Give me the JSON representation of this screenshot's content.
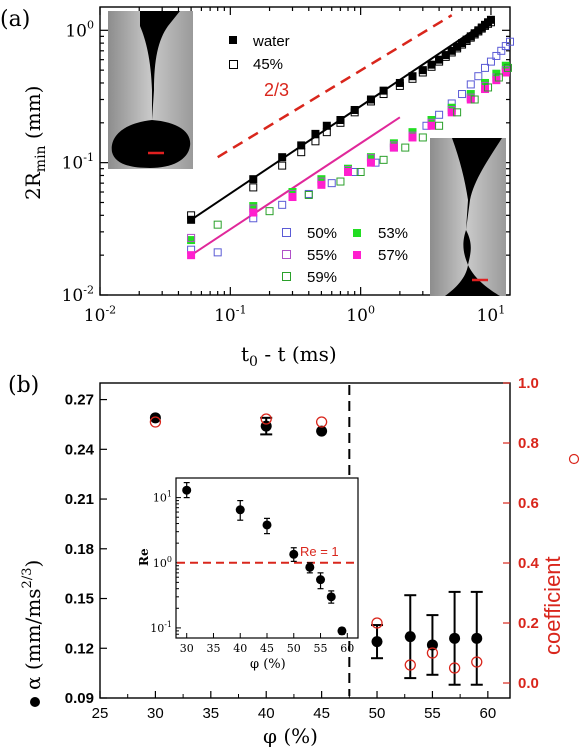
{
  "chart_data": [
    {
      "panel_label": "(a)",
      "type": "scatter",
      "scale": "log-log",
      "xlabel_main": "t",
      "xlabel_sub": "0",
      "xlabel_rest": " - t (ms)",
      "ylabel_main": "2R",
      "ylabel_sub": "min",
      "ylabel_rest": " (mm)",
      "xlim": [
        0.01,
        14
      ],
      "ylim": [
        0.01,
        1.5
      ],
      "x_ticks": [
        {
          "value": 0.01,
          "base": "10",
          "exp": "-2"
        },
        {
          "value": 0.1,
          "base": "10",
          "exp": "-1"
        },
        {
          "value": 1,
          "base": "10",
          "exp": "0"
        },
        {
          "value": 10,
          "base": "10",
          "exp": "1"
        }
      ],
      "y_ticks": [
        {
          "value": 0.01,
          "base": "10",
          "exp": "-2"
        },
        {
          "value": 0.1,
          "base": "10",
          "exp": "-1"
        },
        {
          "value": 1,
          "base": "10",
          "exp": "0"
        }
      ],
      "slope_label": "2/3",
      "slope_line": {
        "x": [
          0.08,
          5.0
        ],
        "y": [
          0.11,
          1.3
        ],
        "color": "#d9261c"
      },
      "fit_lines": [
        {
          "x": [
            0.05,
            10
          ],
          "y": [
            0.037,
            1.22
          ],
          "color": "#000000"
        },
        {
          "x": [
            0.05,
            2.0
          ],
          "y": [
            0.02,
            0.22
          ],
          "color": "#e0289a"
        }
      ],
      "series": [
        {
          "name": "water",
          "marker": "square-filled",
          "color": "#000000",
          "x": [
            0.05,
            0.15,
            0.25,
            0.35,
            0.45,
            0.55,
            0.7,
            0.9,
            1.2,
            1.5,
            2.0,
            2.5,
            3.0,
            3.5,
            4.0,
            4.5,
            5.0,
            5.5,
            6.0,
            6.5,
            7.0,
            7.5,
            8.0,
            8.5,
            9.0,
            9.5,
            10.0
          ],
          "y": [
            0.037,
            0.075,
            0.11,
            0.135,
            0.165,
            0.19,
            0.21,
            0.25,
            0.3,
            0.35,
            0.4,
            0.45,
            0.5,
            0.55,
            0.6,
            0.65,
            0.7,
            0.75,
            0.8,
            0.85,
            0.9,
            0.95,
            1.0,
            1.05,
            1.1,
            1.15,
            1.2
          ]
        },
        {
          "name": "45%",
          "marker": "square-open",
          "color": "#000000",
          "x": [
            0.05,
            0.15,
            0.25,
            0.35,
            0.45,
            0.55,
            0.7,
            0.9,
            1.2,
            1.5,
            2.0,
            2.5,
            3.0,
            3.5,
            4.0,
            4.5,
            5.0,
            5.5,
            6.0,
            6.5,
            7.0,
            7.5,
            8.0,
            8.5,
            9.0,
            9.5,
            10.0
          ],
          "y": [
            0.04,
            0.065,
            0.095,
            0.12,
            0.145,
            0.17,
            0.2,
            0.24,
            0.29,
            0.33,
            0.38,
            0.43,
            0.48,
            0.53,
            0.58,
            0.63,
            0.68,
            0.73,
            0.78,
            0.83,
            0.88,
            0.93,
            0.98,
            1.03,
            1.08,
            1.12,
            1.15
          ]
        },
        {
          "name": "50%",
          "marker": "square-open",
          "color": "#5b5bd6",
          "x": [
            0.05,
            0.08,
            0.15,
            0.25,
            0.4,
            0.6,
            0.9,
            1.3,
            1.8,
            2.5,
            3.2,
            4.0,
            5.0,
            6.0,
            7.0,
            8.0,
            9.0,
            10.0,
            11.0,
            12.0,
            13.0,
            14.0
          ],
          "y": [
            0.022,
            0.021,
            0.038,
            0.048,
            0.058,
            0.07,
            0.085,
            0.1,
            0.13,
            0.16,
            0.19,
            0.23,
            0.28,
            0.33,
            0.39,
            0.45,
            0.52,
            0.58,
            0.64,
            0.7,
            0.76,
            0.82
          ]
        },
        {
          "name": "53%",
          "marker": "square-filled",
          "color": "#22dd22",
          "x": [
            0.05,
            0.15,
            0.3,
            0.5,
            0.8,
            1.2,
            1.8,
            2.5,
            3.5,
            5.0,
            7.0,
            9.0,
            11.0,
            13.0
          ],
          "y": [
            0.026,
            0.047,
            0.06,
            0.075,
            0.09,
            0.11,
            0.14,
            0.17,
            0.21,
            0.26,
            0.33,
            0.4,
            0.47,
            0.54
          ]
        },
        {
          "name": "55%",
          "marker": "square-open",
          "color": "#b050c8",
          "x": [
            0.05,
            0.15,
            0.3,
            0.5,
            0.8,
            1.2,
            1.8,
            2.5,
            3.5,
            5.0,
            7.0,
            9.0,
            11.0,
            13.0
          ],
          "y": [
            0.027,
            0.045,
            0.058,
            0.072,
            0.088,
            0.108,
            0.135,
            0.16,
            0.2,
            0.25,
            0.31,
            0.38,
            0.44,
            0.5
          ]
        },
        {
          "name": "57%",
          "marker": "square-filled",
          "color": "#ff1fce",
          "x": [
            0.05,
            0.15,
            0.3,
            0.5,
            0.8,
            1.2,
            1.8,
            2.5,
            3.5,
            5.0,
            7.0,
            9.0,
            11.0,
            13.0
          ],
          "y": [
            0.02,
            0.042,
            0.055,
            0.068,
            0.085,
            0.1,
            0.13,
            0.155,
            0.19,
            0.24,
            0.3,
            0.36,
            0.42,
            0.48
          ]
        },
        {
          "name": "59%",
          "marker": "square-open",
          "color": "#2aa02a",
          "x": [
            0.08,
            0.2,
            0.4,
            0.7,
            1.0,
            1.5,
            2.2,
            3.0,
            4.0,
            5.5,
            7.5,
            9.5,
            11.5,
            13.5
          ],
          "y": [
            0.034,
            0.043,
            0.057,
            0.072,
            0.085,
            0.105,
            0.13,
            0.155,
            0.19,
            0.24,
            0.3,
            0.37,
            0.44,
            0.52
          ]
        }
      ]
    },
    {
      "panel_label": "(b)",
      "type": "scatter",
      "xlabel": "φ (%)",
      "ylabel_left": "α (mm/ms",
      "ylabel_left_exp": "2/3",
      "ylabel_left_close": ")",
      "ylabel_right": "coefficient",
      "xlim": [
        25,
        62
      ],
      "ylim_left": [
        0.09,
        0.28
      ],
      "ylim_right": [
        -0.05,
        1.0
      ],
      "x_ticks": [
        "25",
        "30",
        "35",
        "40",
        "45",
        "50",
        "55",
        "60"
      ],
      "y_left_ticks": [
        "0.09",
        "0.12",
        "0.15",
        "0.18",
        "0.21",
        "0.24",
        "0.27"
      ],
      "y_right_ticks": [
        "0.0",
        "0.2",
        "0.4",
        "0.6",
        "0.8",
        "1.0"
      ],
      "divider_x": 47.5,
      "alpha_series": {
        "marker": "circle-filled",
        "color": "#000000",
        "x": [
          30,
          40,
          45,
          50,
          53,
          55,
          57,
          59
        ],
        "y": [
          0.259,
          0.254,
          0.251,
          0.124,
          0.127,
          0.122,
          0.126,
          0.126
        ],
        "err": [
          0.002,
          0.005,
          0.003,
          0.01,
          0.025,
          0.018,
          0.028,
          0.028
        ]
      },
      "coefficient_series": {
        "marker": "circle-open",
        "color": "#d9261c",
        "x": [
          30,
          40,
          45,
          50,
          53,
          55,
          57,
          59
        ],
        "y": [
          0.87,
          0.88,
          0.87,
          0.2,
          0.06,
          0.1,
          0.05,
          0.07
        ]
      },
      "inset": {
        "xlabel": "φ (%)",
        "ylabel": "Re",
        "xlim": [
          28,
          62
        ],
        "ylim": [
          0.07,
          20
        ],
        "x_ticks": [
          "30",
          "35",
          "40",
          "45",
          "50",
          "55",
          "60"
        ],
        "y_ticks": [
          {
            "value": 0.1,
            "base": "10",
            "exp": "-1"
          },
          {
            "value": 1,
            "base": "10",
            "exp": "0"
          },
          {
            "value": 10,
            "base": "10",
            "exp": "1"
          }
        ],
        "ref_line_y": 1,
        "ref_label": "Re = 1",
        "x": [
          30,
          40,
          45,
          50,
          53,
          55,
          57,
          59
        ],
        "y": [
          13,
          6.5,
          3.8,
          1.35,
          0.85,
          0.55,
          0.3,
          0.09
        ],
        "err_lo": [
          3,
          2,
          1,
          0.3,
          0.15,
          0.15,
          0.06,
          0.01
        ],
        "err_hi": [
          4,
          2.5,
          1,
          0.35,
          0.15,
          0.15,
          0.07,
          0.01
        ]
      }
    }
  ]
}
